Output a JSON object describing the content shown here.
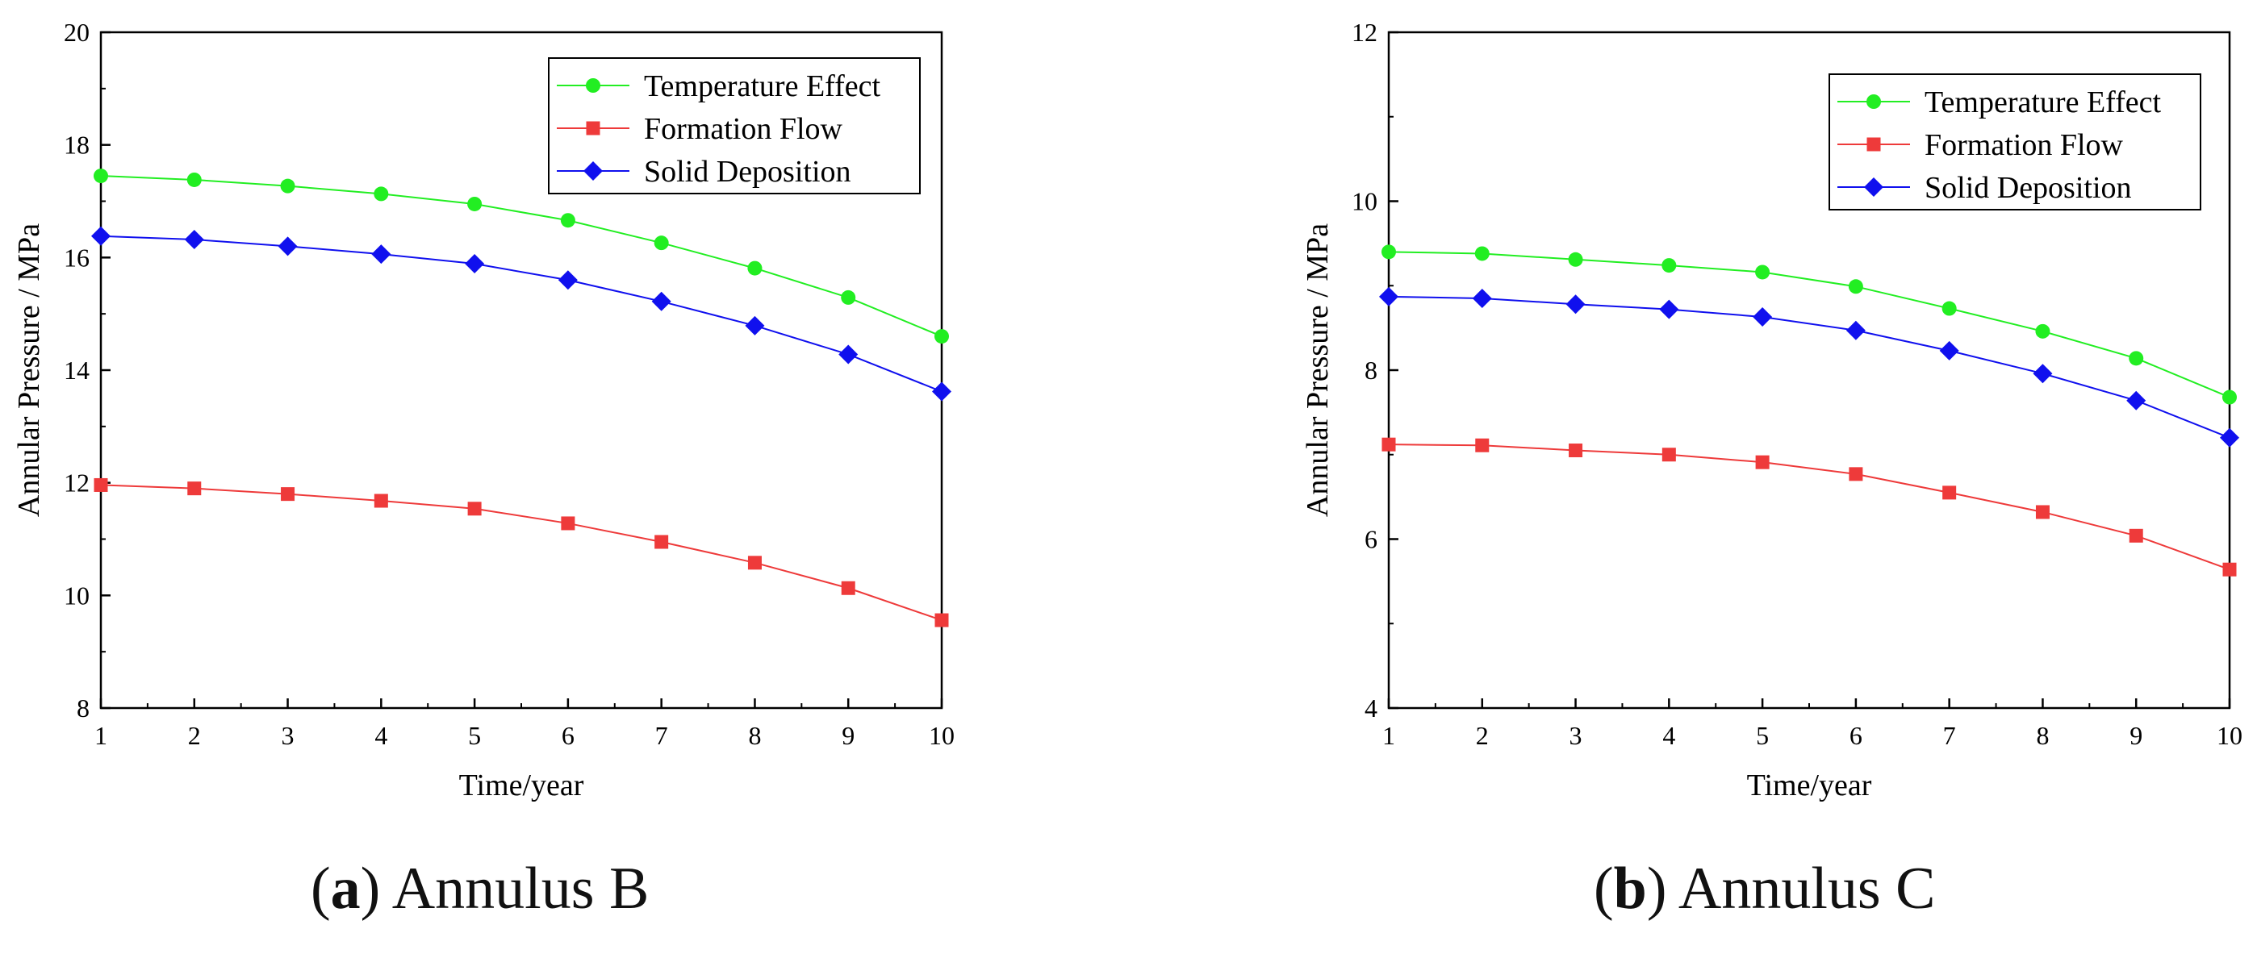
{
  "chart_data": [
    {
      "type": "line",
      "panel_label": "a",
      "caption": "Annulus B",
      "xlabel": "Time/year",
      "ylabel": "Annular Pressure / MPa",
      "xlim": [
        1,
        10
      ],
      "ylim": [
        8,
        20
      ],
      "xticks": [
        1,
        2,
        3,
        4,
        5,
        6,
        7,
        8,
        9,
        10
      ],
      "yticks": [
        8,
        10,
        12,
        14,
        16,
        18,
        20
      ],
      "legend_position": "top-right",
      "x": [
        1,
        2,
        3,
        4,
        5,
        6,
        7,
        8,
        9,
        10
      ],
      "series": [
        {
          "name": "Temperature Effect",
          "color": "#22ee22",
          "marker": "circle",
          "values": [
            17.45,
            17.38,
            17.27,
            17.13,
            16.95,
            16.66,
            16.26,
            15.81,
            15.29,
            14.6
          ]
        },
        {
          "name": "Formation Flow",
          "color": "#ee3a3a",
          "marker": "square",
          "values": [
            11.96,
            11.9,
            11.8,
            11.68,
            11.54,
            11.28,
            10.95,
            10.58,
            10.13,
            9.56
          ]
        },
        {
          "name": "Solid Deposition",
          "color": "#1010ee",
          "marker": "diamond",
          "values": [
            16.38,
            16.32,
            16.2,
            16.06,
            15.89,
            15.6,
            15.22,
            14.79,
            14.28,
            13.62
          ]
        }
      ]
    },
    {
      "type": "line",
      "panel_label": "b",
      "caption": "Annulus C",
      "xlabel": "Time/year",
      "ylabel": "Annular Pressure / MPa",
      "xlim": [
        1,
        10
      ],
      "ylim": [
        4,
        12
      ],
      "xticks": [
        1,
        2,
        3,
        4,
        5,
        6,
        7,
        8,
        9,
        10
      ],
      "yticks": [
        4,
        6,
        8,
        10,
        12
      ],
      "legend_position": "top-right",
      "x": [
        1,
        2,
        3,
        4,
        5,
        6,
        7,
        8,
        9,
        10
      ],
      "series": [
        {
          "name": "Temperature Effect",
          "color": "#22ee22",
          "marker": "circle",
          "values": [
            9.4,
            9.38,
            9.31,
            9.24,
            9.16,
            8.99,
            8.73,
            8.46,
            8.14,
            7.68
          ]
        },
        {
          "name": "Formation Flow",
          "color": "#ee3a3a",
          "marker": "square",
          "values": [
            7.12,
            7.11,
            7.05,
            7.0,
            6.91,
            6.77,
            6.55,
            6.32,
            6.04,
            5.64
          ]
        },
        {
          "name": "Solid Deposition",
          "color": "#1010ee",
          "marker": "diamond",
          "values": [
            8.87,
            8.85,
            8.78,
            8.72,
            8.63,
            8.47,
            8.23,
            7.96,
            7.64,
            7.2
          ]
        }
      ]
    }
  ]
}
